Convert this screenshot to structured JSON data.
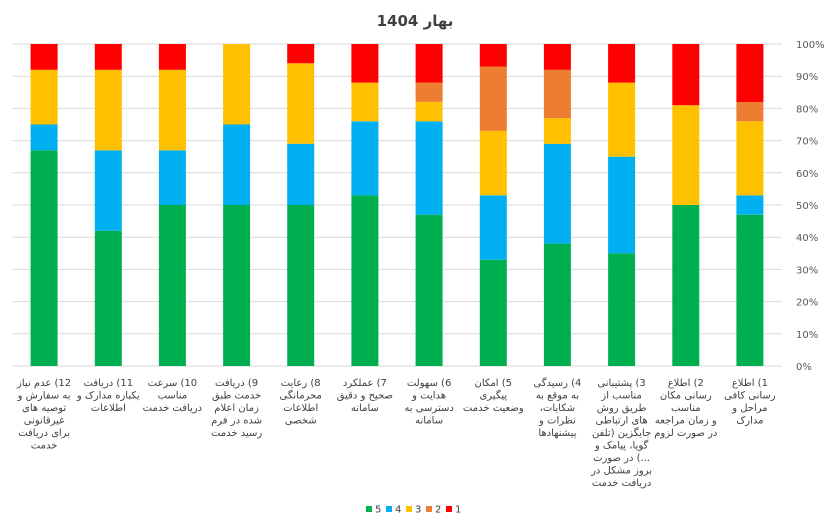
{
  "chart_data": {
    "type": "bar",
    "stacked": true,
    "percent_stacked": true,
    "title": "بهار 1404",
    "ylim": [
      0,
      100
    ],
    "y_ticks": [
      "0%",
      "10%",
      "20%",
      "30%",
      "40%",
      "50%",
      "60%",
      "70%",
      "80%",
      "90%",
      "100%"
    ],
    "grid": true,
    "legend_position": "bottom",
    "categories": [
      [
        "1) اطلاع",
        "رسانی کافی",
        "مراحل و",
        "مدارک"
      ],
      [
        "2) اطلاع",
        "رسانی مکان",
        "مناسب",
        "و زمان مراجعه",
        "در صورت لزوم"
      ],
      [
        "3) پشتیبانی",
        "مناسب از",
        "طریق روش",
        "های ارتباطی",
        "جایگزین (تلفن",
        "گویا، پیامک و",
        "...) در صورت",
        "بروز مشکل در",
        "دریافت خدمت"
      ],
      [
        "4) رسیدگی",
        "به موقع به",
        "شکایات،",
        "نظرات و",
        "پیشنهادها"
      ],
      [
        "5) امکان",
        "پیگیری",
        "وضعیت خدمت"
      ],
      [
        "6) سهولت",
        "هدایت و",
        "دسترسی به",
        "سامانه"
      ],
      [
        "7) عملکرد",
        "صحیح و دقیق",
        "سامانه"
      ],
      [
        "8) رعایت",
        "محرمانگی",
        "اطلاعات",
        "شخصی"
      ],
      [
        "9) دریافت",
        "خدمت طبق",
        "زمان اعلام",
        "شده در فرم",
        "رسید خدمت"
      ],
      [
        "10) سرعت",
        "مناسب",
        "دریافت خدمت"
      ],
      [
        "11) دریافت",
        "یکباره مدارک و",
        "اطلاعات"
      ],
      [
        "12) عدم نیاز",
        "به سفارش و",
        "توصیه های",
        "غیرقانونی",
        "برای دریافت",
        "خدمت"
      ]
    ],
    "series": [
      {
        "name": "5",
        "color": "#00b050",
        "values": [
          47,
          50,
          35,
          38,
          33,
          47,
          53,
          50,
          50,
          50,
          42,
          67
        ]
      },
      {
        "name": "4",
        "color": "#00b0f0",
        "values": [
          6,
          0,
          30,
          31,
          20,
          29,
          23,
          19,
          25,
          17,
          25,
          8
        ]
      },
      {
        "name": "3",
        "color": "#ffc000",
        "values": [
          23,
          31,
          23,
          8,
          20,
          6,
          12,
          25,
          25,
          25,
          25,
          17
        ]
      },
      {
        "name": "2",
        "color": "#ed7d31",
        "values": [
          6,
          0,
          0,
          15,
          20,
          6,
          0,
          0,
          0,
          0,
          0,
          0
        ]
      },
      {
        "name": "1",
        "color": "#ff0000",
        "values": [
          18,
          19,
          12,
          8,
          7,
          12,
          12,
          6,
          0,
          8,
          8,
          8
        ]
      }
    ],
    "legend_order": [
      "5",
      "4",
      "3",
      "2",
      "1"
    ]
  }
}
